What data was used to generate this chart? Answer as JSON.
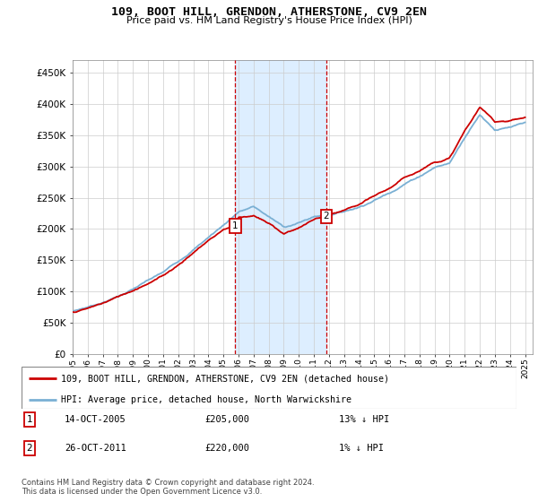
{
  "title": "109, BOOT HILL, GRENDON, ATHERSTONE, CV9 2EN",
  "subtitle": "Price paid vs. HM Land Registry's House Price Index (HPI)",
  "ylabel_ticks": [
    "£0",
    "£50K",
    "£100K",
    "£150K",
    "£200K",
    "£250K",
    "£300K",
    "£350K",
    "£400K",
    "£450K"
  ],
  "ylim": [
    0,
    470000
  ],
  "xlim_start": 1995,
  "xlim_end": 2025.5,
  "transaction1": {
    "date": "14-OCT-2005",
    "price": 205000,
    "label": "1",
    "hpi_rel": "13% ↓ HPI",
    "x": 2005.79
  },
  "transaction2": {
    "date": "26-OCT-2011",
    "price": 220000,
    "label": "2",
    "hpi_rel": "1% ↓ HPI",
    "x": 2011.82
  },
  "legend_property": "109, BOOT HILL, GRENDON, ATHERSTONE, CV9 2EN (detached house)",
  "legend_hpi": "HPI: Average price, detached house, North Warwickshire",
  "footer": "Contains HM Land Registry data © Crown copyright and database right 2024.\nThis data is licensed under the Open Government Licence v3.0.",
  "property_color": "#cc0000",
  "hpi_color": "#7ab0d4",
  "shade_color": "#ddeeff",
  "vline_color": "#cc0000",
  "background_color": "#ffffff",
  "grid_color": "#cccccc",
  "hpi_nodes_x": [
    1995,
    1996,
    1997,
    1998,
    1999,
    2000,
    2001,
    2002,
    2003,
    2004,
    2005,
    2006,
    2007,
    2008,
    2009,
    2010,
    2011,
    2012,
    2013,
    2014,
    2015,
    2016,
    2017,
    2018,
    2019,
    2020,
    2021,
    2022,
    2023,
    2024,
    2025
  ],
  "hpi_nodes_y": [
    68000,
    75000,
    83000,
    93000,
    105000,
    118000,
    130000,
    148000,
    168000,
    188000,
    208000,
    230000,
    238000,
    222000,
    205000,
    212000,
    222000,
    226000,
    232000,
    240000,
    252000,
    264000,
    280000,
    293000,
    308000,
    315000,
    358000,
    395000,
    372000,
    375000,
    380000
  ],
  "prop_nodes_x": [
    1995,
    1996,
    1997,
    1998,
    1999,
    2000,
    2001,
    2002,
    2003,
    2004,
    2005,
    2005.79,
    2006,
    2007,
    2008,
    2009,
    2010,
    2011,
    2011.82,
    2012,
    2013,
    2014,
    2015,
    2016,
    2017,
    2018,
    2019,
    2020,
    2021,
    2022,
    2023,
    2024,
    2025
  ],
  "prop_nodes_y": [
    62000,
    68000,
    76000,
    86000,
    97000,
    110000,
    122000,
    140000,
    160000,
    180000,
    198000,
    205000,
    218000,
    222000,
    208000,
    192000,
    202000,
    215000,
    220000,
    222000,
    228000,
    236000,
    248000,
    260000,
    276000,
    289000,
    304000,
    311000,
    354000,
    391000,
    368000,
    371000,
    376000
  ]
}
